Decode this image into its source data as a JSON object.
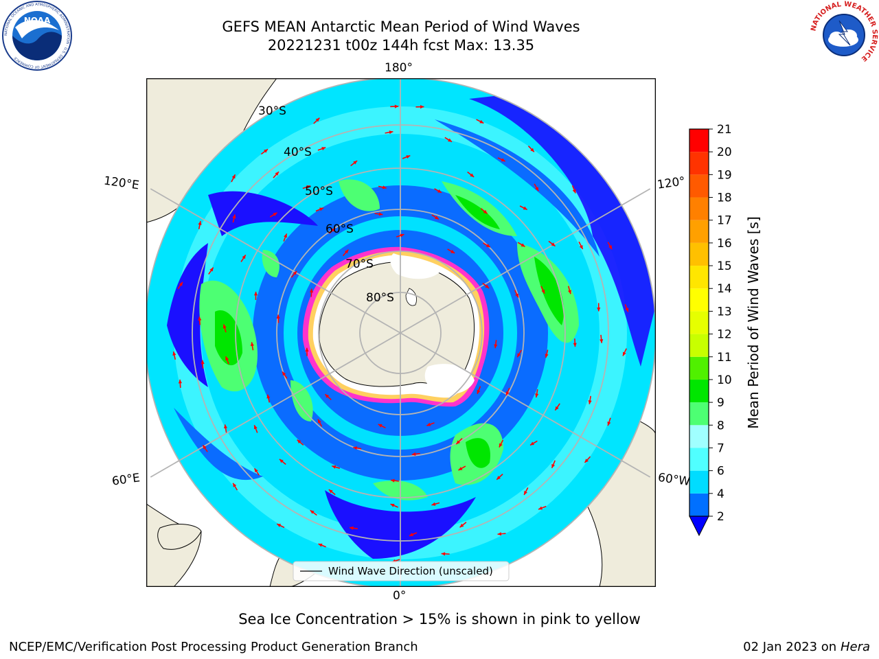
{
  "header": {
    "title_line1": "GEFS MEAN Antarctic Mean Period of Wind Waves",
    "title_line2": "20221231 t00z 144h fcst   Max: 13.35"
  },
  "logos": {
    "left": "noaa-logo",
    "right": "nws-logo",
    "noaa_text": "NOAA",
    "noaa_ring_text": "NATIONAL OCEANIC AND ATMOSPHERIC ADMINISTRATION · U.S. DEPARTMENT OF COMMERCE",
    "nws_ring_text": "NATIONAL WEATHER SERVICE"
  },
  "map": {
    "projection": "south-polar-stereographic",
    "land_color": "#efecdc",
    "ice_color": "#ffffff",
    "ice_edge_colors": [
      "#ff33cc",
      "#ff88ee",
      "#ffd060"
    ],
    "arrow_color": "#ff0000",
    "graticule_color": "#b4b4b4",
    "lon_labels": {
      "top": "180°",
      "bottom": "0°",
      "upper_left": "120°E",
      "upper_right": "120°",
      "lower_left": "60°E",
      "lower_right": "60°W"
    },
    "lat_labels": [
      "30°S",
      "40°S",
      "50°S",
      "60°S",
      "70°S",
      "80°S"
    ],
    "legend_label": "Wind Wave Direction (unscaled)"
  },
  "colorbar": {
    "label": "Mean Period of Wind Waves [s]",
    "ticks": [
      "2",
      "4",
      "6",
      "7",
      "8",
      "9",
      "10",
      "11",
      "12",
      "13",
      "14",
      "15",
      "16",
      "17",
      "18",
      "19",
      "20",
      "21"
    ],
    "colors": [
      "#0070ff",
      "#00dcff",
      "#50ffff",
      "#a0ffff",
      "#4dff73",
      "#00e600",
      "#50f000",
      "#c8ff00",
      "#e6ff00",
      "#ffff00",
      "#ffe600",
      "#ffc000",
      "#ffa000",
      "#ff8000",
      "#ff5a00",
      "#ff3300",
      "#ff0000"
    ],
    "under_color": "#0000ff"
  },
  "caption": "Sea Ice Concentration > 15% is shown in pink to yellow",
  "footer": {
    "left": "NCEP/EMC/Verification Post Processing Product Generation Branch",
    "right_date": "02 Jan 2023 on",
    "right_host": "Hera"
  }
}
